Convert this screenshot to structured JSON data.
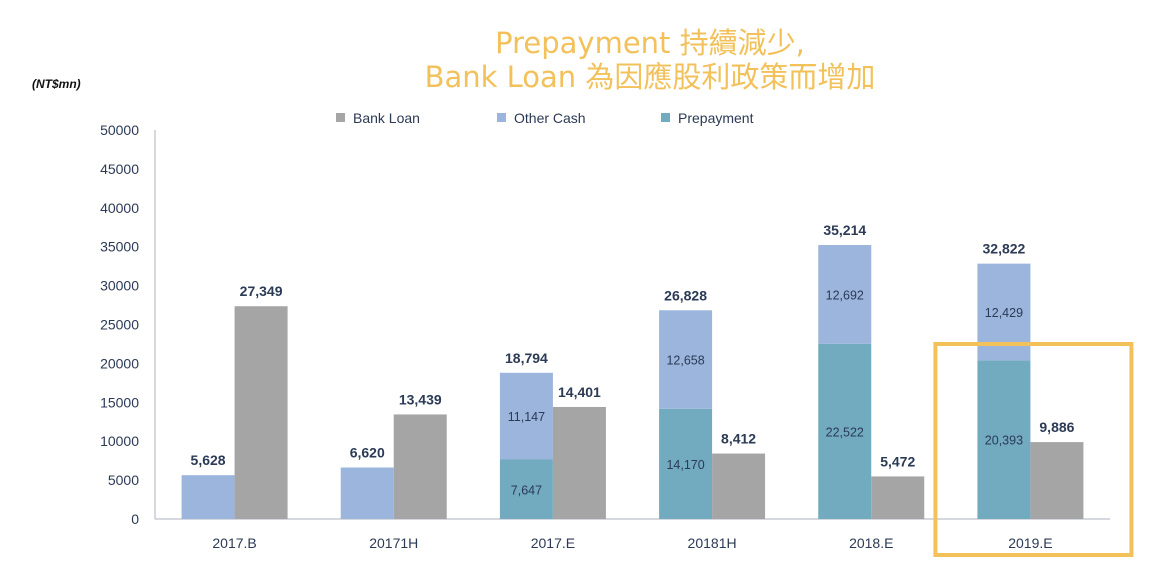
{
  "title": {
    "line1": "Prepayment 持續減少,",
    "line2": "Bank Loan 為因應股利政策而增加"
  },
  "unit": "(NT$mn)",
  "chart_data": {
    "type": "bar",
    "stacked_cash_plus_side_by_side_loan": true,
    "categories": [
      "2017.B",
      "20171H",
      "2017.E",
      "20181H",
      "2018.E",
      "2019.E"
    ],
    "series": [
      {
        "name": "Prepayment",
        "color": "#72aac0",
        "values": [
          0,
          0,
          7647,
          14170,
          22522,
          20393
        ],
        "labels": [
          "",
          "",
          "7,647",
          "14,170",
          "22,522",
          "20,393"
        ]
      },
      {
        "name": "Other Cash",
        "color": "#9bb5dc",
        "values": [
          5628,
          6620,
          11147,
          12658,
          12692,
          12429
        ],
        "labels": [
          "",
          "",
          "11,147",
          "12,658",
          "12,692",
          "12,429"
        ]
      },
      {
        "name": "Bank Loan",
        "color": "#a5a5a5",
        "values": [
          27349,
          13439,
          14401,
          8412,
          5472,
          9886
        ],
        "labels": [
          "27,349",
          "13,439",
          "14,401",
          "8,412",
          "5,472",
          "9,886"
        ]
      }
    ],
    "cash_totals": [
      "5,628",
      "6,620",
      "18,794",
      "26,828",
      "35,214",
      "32,822"
    ],
    "legend": [
      "Bank Loan",
      "Other Cash",
      "Prepayment"
    ],
    "legend_position": "top",
    "ylim": [
      0,
      50000
    ],
    "yticks": [
      0,
      5000,
      10000,
      15000,
      20000,
      25000,
      30000,
      35000,
      40000,
      45000,
      50000
    ],
    "grid": false,
    "highlight_category": "2019.E",
    "highlight_color": "#f2c15a"
  }
}
